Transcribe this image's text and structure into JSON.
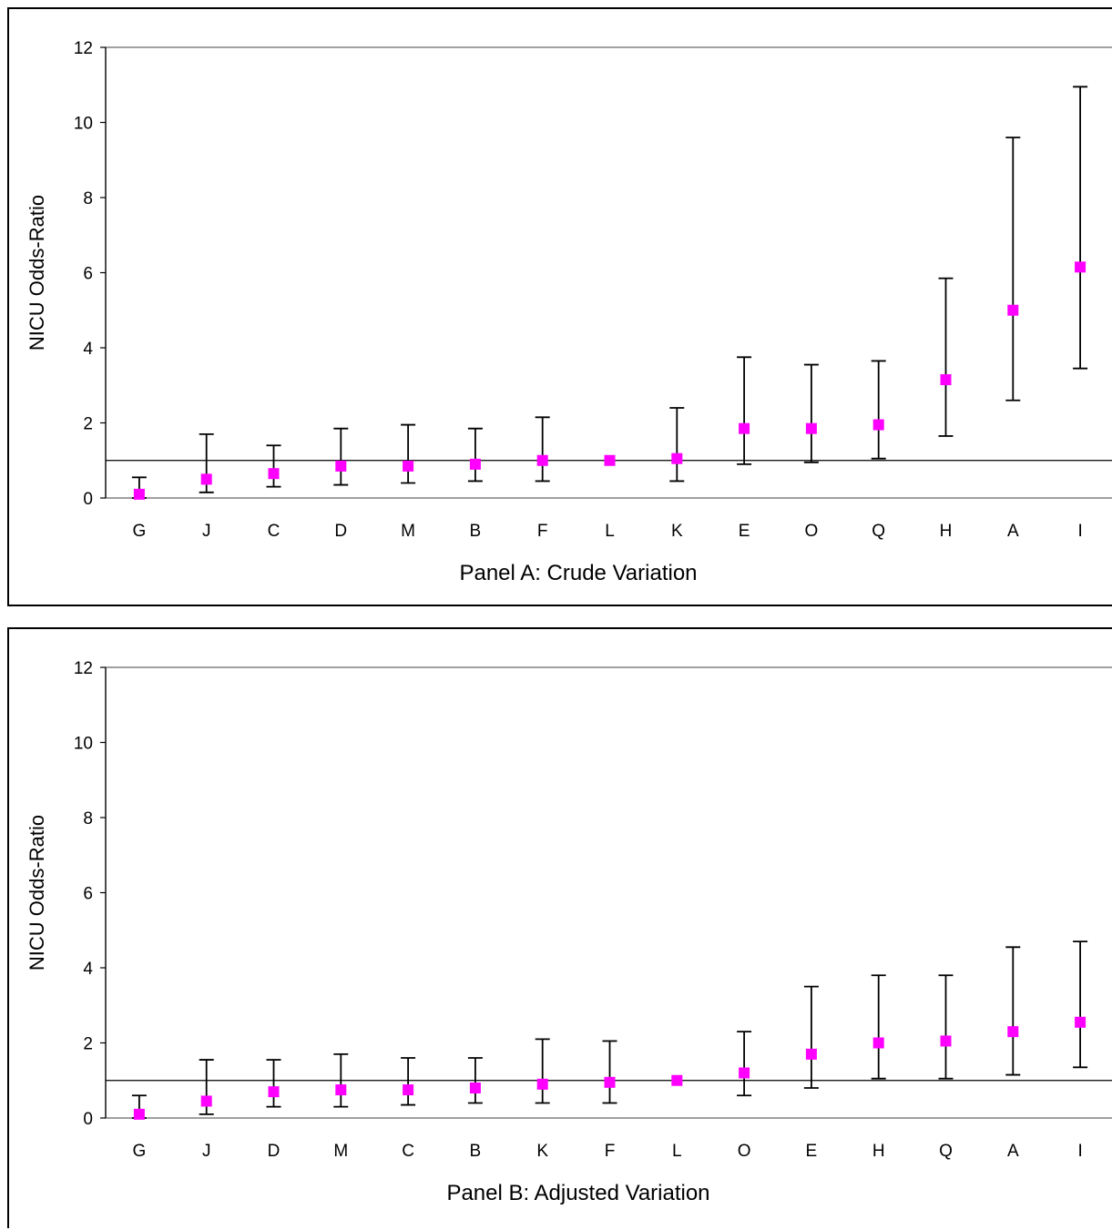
{
  "chart_data": [
    {
      "type": "scatter",
      "variant": "point-with-error-bars",
      "title": "",
      "xlabel": "Panel A: Crude Variation",
      "ylabel": "NICU Odds-Ratio",
      "ylim": [
        0,
        12
      ],
      "yticks": [
        0,
        2,
        4,
        6,
        8,
        10,
        12
      ],
      "reference_line": 1,
      "grid": false,
      "marker_color": "#ff00ff",
      "categories": [
        "G",
        "J",
        "C",
        "D",
        "M",
        "B",
        "F",
        "L",
        "K",
        "E",
        "O",
        "Q",
        "H",
        "A",
        "I"
      ],
      "values": [
        0.1,
        0.5,
        0.65,
        0.85,
        0.85,
        0.9,
        1.0,
        1.0,
        1.05,
        1.85,
        1.85,
        1.95,
        3.15,
        5.0,
        6.15
      ],
      "lower": [
        0.0,
        0.15,
        0.3,
        0.35,
        0.4,
        0.45,
        0.45,
        1.0,
        0.45,
        0.9,
        0.95,
        1.05,
        1.65,
        2.6,
        3.45
      ],
      "upper": [
        0.55,
        1.7,
        1.4,
        1.85,
        1.95,
        1.85,
        2.15,
        1.0,
        2.4,
        3.75,
        3.55,
        3.65,
        5.85,
        9.6,
        10.95
      ]
    },
    {
      "type": "scatter",
      "variant": "point-with-error-bars",
      "title": "",
      "xlabel": "Panel B: Adjusted Variation",
      "ylabel": "NICU Odds-Ratio",
      "ylim": [
        0,
        12
      ],
      "yticks": [
        0,
        2,
        4,
        6,
        8,
        10,
        12
      ],
      "reference_line": 1,
      "grid": false,
      "marker_color": "#ff00ff",
      "categories": [
        "G",
        "J",
        "D",
        "M",
        "C",
        "B",
        "K",
        "F",
        "L",
        "O",
        "E",
        "H",
        "Q",
        "A",
        "I"
      ],
      "values": [
        0.1,
        0.45,
        0.7,
        0.75,
        0.75,
        0.8,
        0.9,
        0.95,
        1.0,
        1.2,
        1.7,
        2.0,
        2.05,
        2.3,
        2.55
      ],
      "lower": [
        0.0,
        0.1,
        0.3,
        0.3,
        0.35,
        0.4,
        0.4,
        0.4,
        1.0,
        0.6,
        0.8,
        1.05,
        1.05,
        1.15,
        1.35
      ],
      "upper": [
        0.6,
        1.55,
        1.55,
        1.7,
        1.6,
        1.6,
        2.1,
        2.05,
        1.0,
        2.3,
        3.5,
        3.8,
        3.8,
        4.55,
        4.7
      ]
    }
  ]
}
